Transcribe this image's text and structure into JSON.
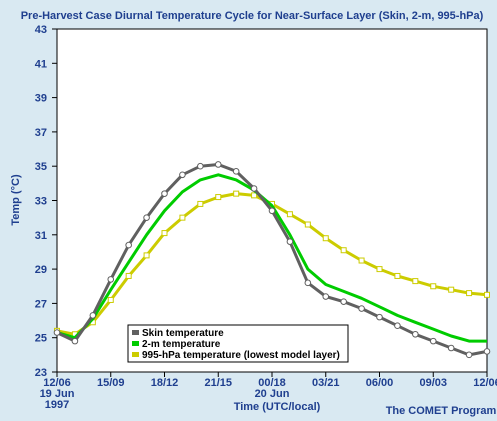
{
  "chart_data": {
    "type": "line",
    "title": "Pre-Harvest Case Diurnal Temperature Cycle for Near-Surface Layer (Skin, 2-m, 995-hPa)",
    "xlabel": "Time (UTC/local)",
    "ylabel": "Temp (°C)",
    "ylim": [
      23,
      43
    ],
    "y_ticks": [
      23,
      25,
      27,
      29,
      31,
      33,
      35,
      37,
      39,
      41,
      43
    ],
    "x_ticks": [
      {
        "label": "12/06",
        "sub": [
          "19 Jun",
          "1997"
        ]
      },
      {
        "label": "15/09",
        "sub": []
      },
      {
        "label": "18/12",
        "sub": []
      },
      {
        "label": "21/15",
        "sub": []
      },
      {
        "label": "00/18",
        "sub": [
          "20 Jun"
        ]
      },
      {
        "label": "03/21",
        "sub": []
      },
      {
        "label": "06/00",
        "sub": []
      },
      {
        "label": "09/03",
        "sub": []
      },
      {
        "label": "12/06",
        "sub": []
      }
    ],
    "x_range_hours": [
      0,
      24
    ],
    "grid": false,
    "legend_position": "bottom-left",
    "series": [
      {
        "name": "Skin temperature",
        "color": "#606060",
        "x": [
          0,
          1,
          2,
          3,
          4,
          5,
          6,
          7,
          8,
          9,
          10,
          11,
          12,
          13,
          14,
          15,
          16,
          17,
          18,
          19,
          20,
          21,
          22,
          23,
          24
        ],
        "values": [
          25.3,
          24.8,
          26.3,
          28.4,
          30.4,
          32.0,
          33.4,
          34.5,
          35.0,
          35.1,
          34.7,
          33.7,
          32.4,
          30.6,
          28.2,
          27.4,
          27.1,
          26.7,
          26.2,
          25.7,
          25.2,
          24.8,
          24.4,
          24.0,
          24.2
        ]
      },
      {
        "name": "2-m temperature",
        "color": "#00cc00",
        "x": [
          0,
          1,
          2,
          3,
          4,
          5,
          6,
          7,
          8,
          9,
          10,
          11,
          12,
          13,
          14,
          15,
          16,
          17,
          18,
          19,
          20,
          21,
          22,
          23,
          24
        ],
        "values": [
          25.3,
          25.0,
          26.1,
          27.8,
          29.4,
          31.0,
          32.4,
          33.5,
          34.2,
          34.5,
          34.2,
          33.6,
          32.7,
          31.0,
          29.0,
          28.1,
          27.7,
          27.3,
          26.8,
          26.3,
          25.9,
          25.5,
          25.1,
          24.8,
          24.8
        ]
      },
      {
        "name": "995-hPa temperature (lowest model layer)",
        "color": "#cccc00",
        "x": [
          0,
          1,
          2,
          3,
          4,
          5,
          6,
          7,
          8,
          9,
          10,
          11,
          12,
          13,
          14,
          15,
          16,
          17,
          18,
          19,
          20,
          21,
          22,
          23,
          24
        ],
        "values": [
          25.4,
          25.2,
          25.9,
          27.2,
          28.6,
          29.8,
          31.1,
          32.0,
          32.8,
          33.2,
          33.4,
          33.3,
          32.8,
          32.2,
          31.6,
          30.8,
          30.1,
          29.5,
          29.0,
          28.6,
          28.3,
          28.0,
          27.8,
          27.6,
          27.5
        ]
      }
    ]
  },
  "credit": "The COMET Program",
  "colors": {
    "background": "#d9e9f2",
    "plot_background": "#ffffff",
    "text": "#1f3f8f"
  }
}
